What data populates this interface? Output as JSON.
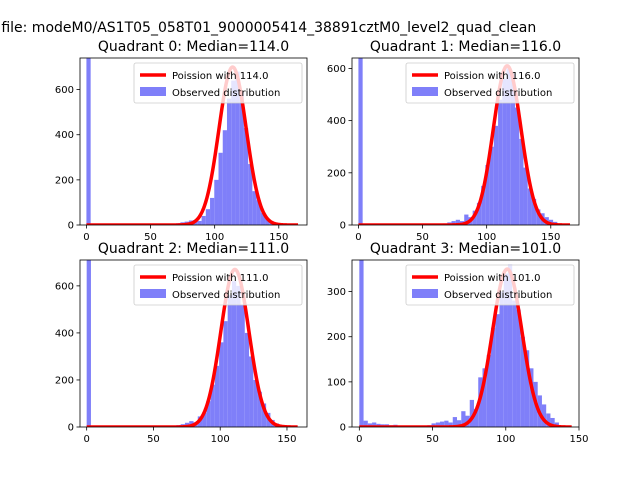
{
  "figure": {
    "suptitle": "n file: modeM0/AS1T05_058T01_9000005414_38891cztM0_level2_quad_clean"
  },
  "chart_data": [
    {
      "type": "bar",
      "title": "Quadrant 0: Median=114.0",
      "xlim": [
        -5,
        172
      ],
      "ylim": [
        0,
        740
      ],
      "xticks": [
        "0",
        "50",
        "100",
        "150"
      ],
      "yticks": [
        "0",
        "200",
        "400",
        "600"
      ],
      "legend": {
        "placement": "top-right",
        "entries": [
          "Poission with 114.0",
          "Observed distribution"
        ]
      },
      "histogram": {
        "name": "Observed distribution",
        "color": "#7f7ff9",
        "bin_width": 3.3,
        "bins": [
          [
            0,
            740
          ],
          [
            3.3,
            3
          ],
          [
            70,
            8
          ],
          [
            73.3,
            12
          ],
          [
            76.6,
            15
          ],
          [
            79.9,
            20
          ],
          [
            83.2,
            22
          ],
          [
            86.5,
            18
          ],
          [
            89.8,
            40
          ],
          [
            93.1,
            70
          ],
          [
            96.4,
            120
          ],
          [
            99.7,
            200
          ],
          [
            103,
            320
          ],
          [
            106.3,
            420
          ],
          [
            109.6,
            560
          ],
          [
            112.9,
            640
          ],
          [
            116.2,
            680
          ],
          [
            119.5,
            590
          ],
          [
            122.8,
            430
          ],
          [
            126.1,
            270
          ],
          [
            129.4,
            150
          ],
          [
            132.7,
            110
          ],
          [
            136,
            55
          ],
          [
            139.3,
            30
          ],
          [
            142.6,
            18
          ],
          [
            145.9,
            10
          ],
          [
            149.2,
            5
          ]
        ]
      },
      "poisson": {
        "name": "Poission with 114.0",
        "mean": 114.0,
        "peak": 700,
        "color": "#ff0000",
        "xrange": [
          0,
          165
        ]
      }
    },
    {
      "type": "bar",
      "title": "Quadrant 1: Median=116.0",
      "xlim": [
        -5,
        172
      ],
      "ylim": [
        0,
        640
      ],
      "xticks": [
        "0",
        "50",
        "100",
        "150"
      ],
      "yticks": [
        "0",
        "200",
        "400",
        "600"
      ],
      "legend": {
        "placement": "top-right",
        "entries": [
          "Poission with 116.0",
          "Observed distribution"
        ]
      },
      "histogram": {
        "name": "Observed distribution",
        "color": "#7f7ff9",
        "bin_width": 3.3,
        "bins": [
          [
            0,
            640
          ],
          [
            3.3,
            3
          ],
          [
            66,
            6
          ],
          [
            69.3,
            10
          ],
          [
            72.6,
            15
          ],
          [
            75.9,
            20
          ],
          [
            79.2,
            15
          ],
          [
            82.5,
            40
          ],
          [
            85.8,
            30
          ],
          [
            89.1,
            55
          ],
          [
            92.4,
            85
          ],
          [
            95.7,
            150
          ],
          [
            99,
            230
          ],
          [
            102.3,
            300
          ],
          [
            105.6,
            380
          ],
          [
            108.9,
            480
          ],
          [
            112.2,
            560
          ],
          [
            115.5,
            600
          ],
          [
            118.8,
            580
          ],
          [
            122.1,
            450
          ],
          [
            125.4,
            330
          ],
          [
            128.7,
            220
          ],
          [
            132,
            140
          ],
          [
            135.3,
            100
          ],
          [
            138.6,
            60
          ],
          [
            141.9,
            45
          ],
          [
            145.2,
            30
          ],
          [
            148.5,
            20
          ],
          [
            151.8,
            12
          ],
          [
            155.1,
            6
          ]
        ]
      },
      "poisson": {
        "name": "Poission with 116.0",
        "mean": 116.0,
        "peak": 610,
        "color": "#ff0000",
        "xrange": [
          0,
          165
        ]
      }
    },
    {
      "type": "bar",
      "title": "Quadrant 2: Median=111.0",
      "xlim": [
        -5,
        165
      ],
      "ylim": [
        0,
        710
      ],
      "xticks": [
        "0",
        "50",
        "100",
        "150"
      ],
      "yticks": [
        "0",
        "200",
        "400",
        "600"
      ],
      "legend": {
        "placement": "top-right",
        "entries": [
          "Poission with 111.0",
          "Observed distribution"
        ]
      },
      "histogram": {
        "name": "Observed distribution",
        "color": "#7f7ff9",
        "bin_width": 3.2,
        "bins": [
          [
            0,
            710
          ],
          [
            3.2,
            3
          ],
          [
            64,
            6
          ],
          [
            67.2,
            8
          ],
          [
            70.4,
            12
          ],
          [
            73.6,
            18
          ],
          [
            76.8,
            25
          ],
          [
            80,
            20
          ],
          [
            83.2,
            45
          ],
          [
            86.4,
            60
          ],
          [
            89.6,
            110
          ],
          [
            92.8,
            180
          ],
          [
            96,
            260
          ],
          [
            99.2,
            360
          ],
          [
            102.4,
            450
          ],
          [
            105.6,
            560
          ],
          [
            108.8,
            620
          ],
          [
            112,
            600
          ],
          [
            115.2,
            520
          ],
          [
            118.4,
            400
          ],
          [
            121.6,
            300
          ],
          [
            124.8,
            200
          ],
          [
            128,
            150
          ],
          [
            131.2,
            100
          ],
          [
            134.4,
            60
          ],
          [
            137.6,
            30
          ],
          [
            140.8,
            15
          ],
          [
            144,
            8
          ],
          [
            147.2,
            4
          ]
        ]
      },
      "poisson": {
        "name": "Poission with 111.0",
        "mean": 111.0,
        "peak": 670,
        "color": "#ff0000",
        "xrange": [
          0,
          158
        ]
      }
    },
    {
      "type": "bar",
      "title": "Quadrant 3: Median=101.0",
      "xlim": [
        -5,
        150
      ],
      "ylim": [
        0,
        370
      ],
      "xticks": [
        "0",
        "50",
        "100",
        "150"
      ],
      "yticks": [
        "0",
        "100",
        "200",
        "300"
      ],
      "legend": {
        "placement": "top-right",
        "entries": [
          "Poission with 101.0",
          "Observed distribution"
        ]
      },
      "histogram": {
        "name": "Observed distribution",
        "color": "#7f7ff9",
        "bin_width": 2.9,
        "bins": [
          [
            0,
            370
          ],
          [
            2.9,
            14
          ],
          [
            5.8,
            8
          ],
          [
            8.7,
            10
          ],
          [
            11.6,
            7
          ],
          [
            14.5,
            6
          ],
          [
            17.4,
            6
          ],
          [
            20.3,
            4
          ],
          [
            23.2,
            5
          ],
          [
            26.1,
            3
          ],
          [
            29,
            3
          ],
          [
            31.9,
            2
          ],
          [
            43.5,
            2
          ],
          [
            46.4,
            4
          ],
          [
            49.3,
            8
          ],
          [
            52.2,
            10
          ],
          [
            55.1,
            12
          ],
          [
            58,
            14
          ],
          [
            60.9,
            10
          ],
          [
            63.8,
            22
          ],
          [
            66.7,
            15
          ],
          [
            69.6,
            35
          ],
          [
            72.5,
            25
          ],
          [
            75.4,
            60
          ],
          [
            78.3,
            40
          ],
          [
            81.2,
            110
          ],
          [
            84.1,
            130
          ],
          [
            87,
            160
          ],
          [
            89.9,
            220
          ],
          [
            92.8,
            250
          ],
          [
            95.7,
            300
          ],
          [
            98.6,
            340
          ],
          [
            101.5,
            360
          ],
          [
            104.4,
            280
          ],
          [
            107.3,
            260
          ],
          [
            110.2,
            200
          ],
          [
            113.1,
            170
          ],
          [
            116,
            130
          ],
          [
            118.9,
            100
          ],
          [
            121.8,
            70
          ],
          [
            124.7,
            50
          ],
          [
            127.6,
            30
          ],
          [
            130.5,
            20
          ],
          [
            133.4,
            10
          ]
        ]
      },
      "poisson": {
        "name": "Poission with 101.0",
        "mean": 101.0,
        "peak": 350,
        "color": "#ff0000",
        "xrange": [
          0,
          145
        ]
      }
    }
  ]
}
